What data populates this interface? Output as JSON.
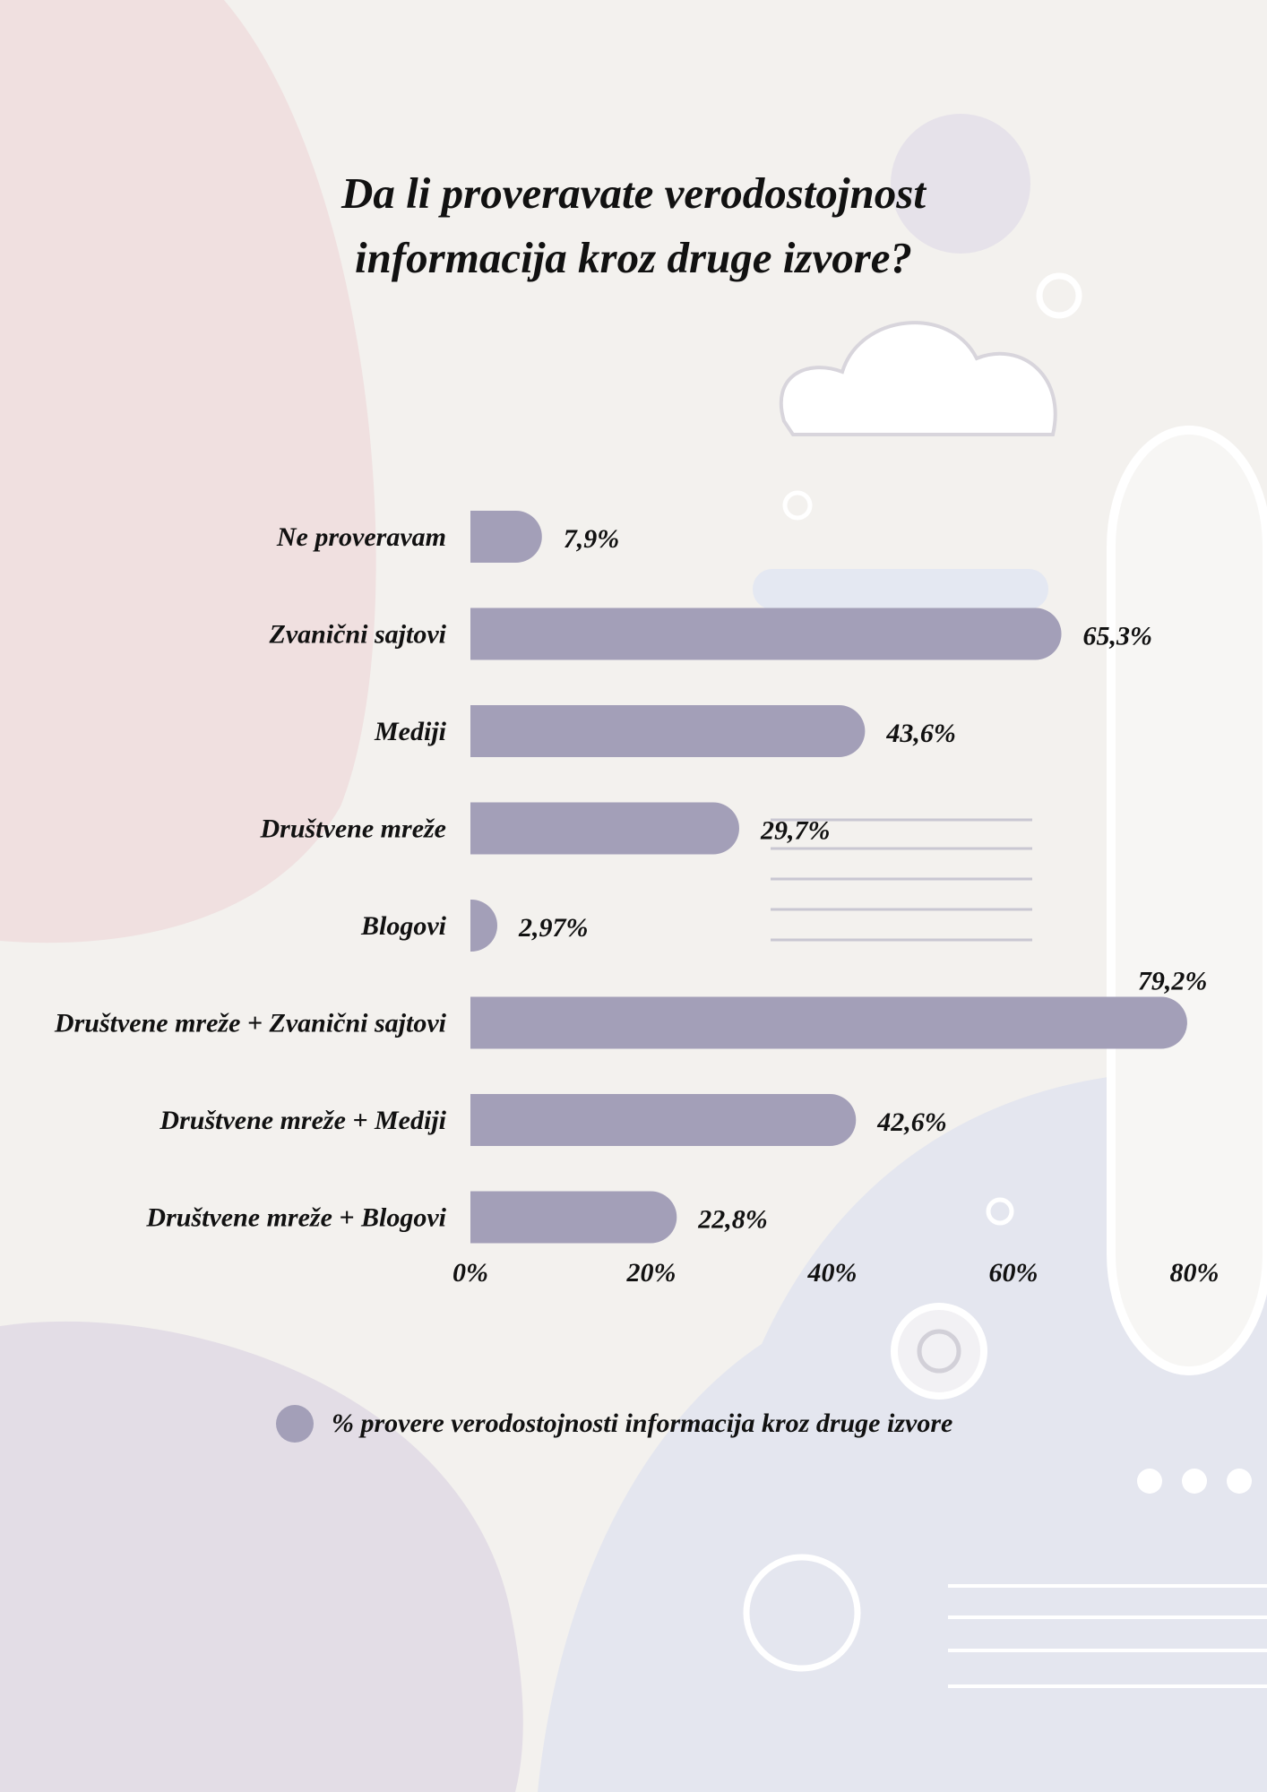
{
  "chart_data": {
    "type": "bar",
    "orientation": "horizontal",
    "title": "Da li proveravate verodostojnost informacija kroz druge izvore?",
    "title_lines": [
      "Da li proveravate verodostojnost",
      "informacija kroz druge izvore?"
    ],
    "categories": [
      "Ne proveravam",
      "Zvanični sajtovi",
      "Mediji",
      "Društvene mreže",
      "Blogovi",
      "Društvene mreže + Zvanični sajtovi",
      "Društvene mreže + Mediji",
      "Društvene mreže + Blogovi"
    ],
    "series": [
      {
        "name": "% provere verodostojnosti informacija kroz druge izvore",
        "values": [
          7.9,
          65.3,
          43.6,
          29.7,
          2.97,
          79.2,
          42.6,
          22.8
        ],
        "labels": [
          "7,9%",
          "65,3%",
          "43,6%",
          "29,7%",
          "2,97%",
          "79,2%",
          "42,6%",
          "22,8%"
        ],
        "color": "#a39fb8"
      }
    ],
    "xlim": [
      0,
      80
    ],
    "xticks": [
      0,
      20,
      40,
      60,
      80
    ],
    "xtick_labels": [
      "0%",
      "20%",
      "40%",
      "60%",
      "80%"
    ],
    "xlabel": "",
    "ylabel": "",
    "grid": false,
    "legend_position": "bottom"
  }
}
